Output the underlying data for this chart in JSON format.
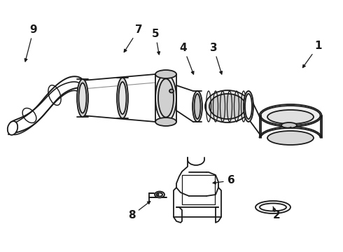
{
  "bg_color": "#ffffff",
  "lc": "#1a1a1a",
  "lw": 1.3,
  "fs": 11,
  "label_positions": {
    "9": [
      48,
      42,
      35,
      92
    ],
    "7": [
      198,
      42,
      175,
      78
    ],
    "5": [
      222,
      48,
      228,
      82
    ],
    "4": [
      262,
      68,
      278,
      110
    ],
    "3": [
      305,
      68,
      318,
      110
    ],
    "1": [
      455,
      65,
      430,
      100
    ],
    "2": [
      395,
      308,
      390,
      295
    ],
    "6": [
      330,
      258,
      300,
      262
    ],
    "8": [
      188,
      308,
      218,
      285
    ]
  }
}
